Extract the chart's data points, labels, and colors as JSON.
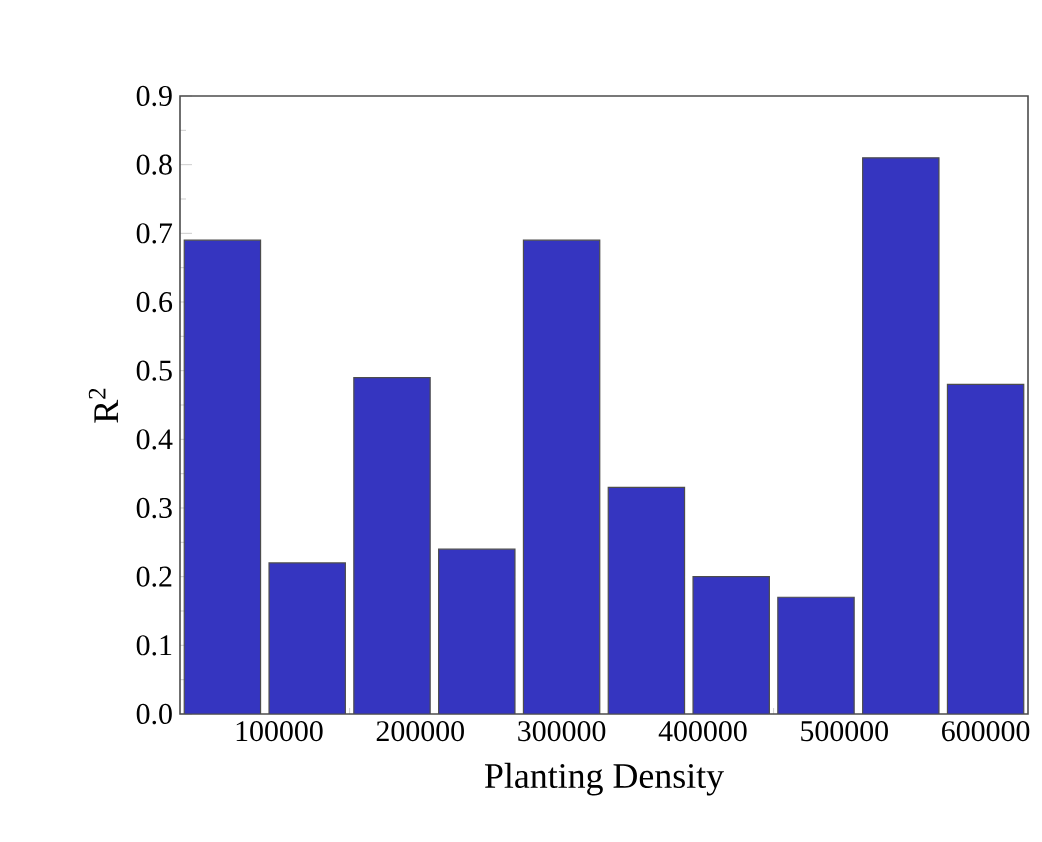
{
  "chart_data": {
    "type": "bar",
    "xlabel": "Planting Density",
    "ylabel": "R$^{2}$",
    "x": [
      60000,
      120000,
      180000,
      240000,
      300000,
      360000,
      420000,
      480000,
      540000,
      600000
    ],
    "values": [
      0.69,
      0.22,
      0.49,
      0.24,
      0.69,
      0.33,
      0.2,
      0.17,
      0.81,
      0.48
    ],
    "color": "#3535c0",
    "xlim": [
      30000,
      630000
    ],
    "xticks": [
      100000,
      200000,
      300000,
      400000,
      500000,
      600000
    ],
    "ylim": [
      0,
      0.9
    ],
    "yticks": [
      {
        "value": 0,
        "label": "0.0"
      },
      0.1,
      0.2,
      0.3,
      0.4,
      0.5,
      0.6,
      0.7,
      0.8,
      0.9
    ],
    "grid": false
  }
}
